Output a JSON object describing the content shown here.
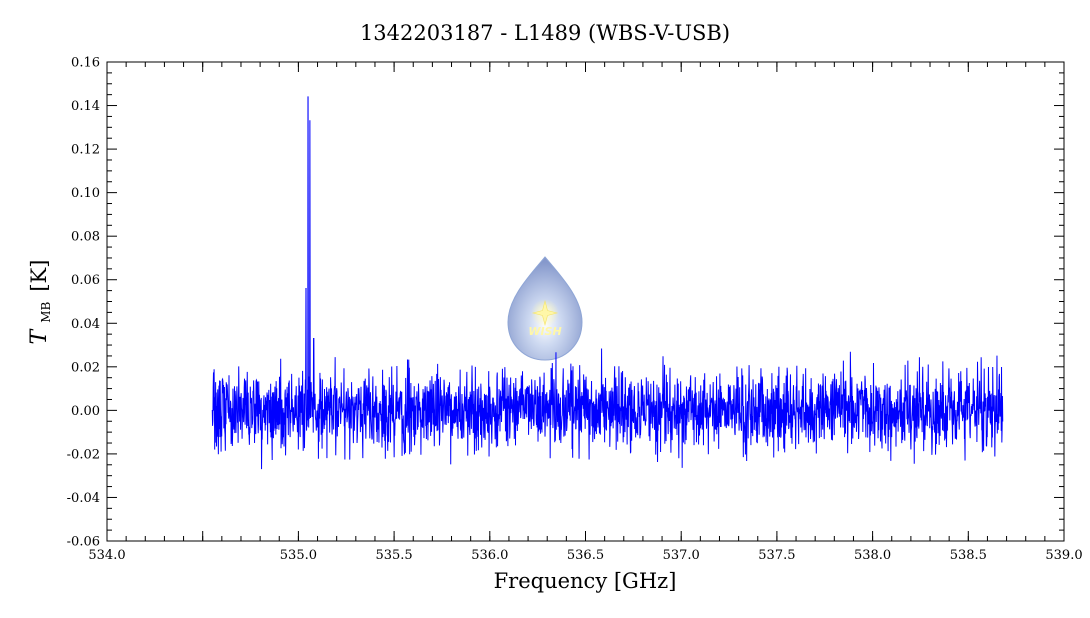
{
  "chart_data": {
    "type": "line",
    "title": "1342203187 - L1489 (WBS-V-USB)",
    "xlabel": "Frequency [GHz]",
    "ylabel": {
      "symbol": "T",
      "subscript": "MB",
      "unit": "[K]"
    },
    "xlim": [
      534.0,
      539.0
    ],
    "ylim": [
      -0.06,
      0.16
    ],
    "x_ticks": [
      "534.0",
      "535.0",
      "535.5",
      "536.0",
      "536.5",
      "537.0",
      "537.5",
      "538.0",
      "538.5",
      "539.0"
    ],
    "x_tick_values": [
      534.0,
      535.0,
      535.5,
      536.0,
      536.5,
      537.0,
      537.5,
      538.0,
      538.5,
      539.0
    ],
    "x_ticks_all": [
      "534.0",
      "534.5",
      "535.0",
      "535.5",
      "536.0",
      "536.5",
      "537.0",
      "537.5",
      "538.0",
      "538.5",
      "539.0"
    ],
    "y_ticks": [
      "0.16",
      "0.14",
      "0.12",
      "0.10",
      "0.08",
      "0.06",
      "0.04",
      "0.02",
      "0.00",
      "-0.02",
      "-0.04",
      "-0.06"
    ],
    "y_tick_values": [
      0.16,
      0.14,
      0.12,
      0.1,
      0.08,
      0.06,
      0.04,
      0.02,
      0.0,
      -0.02,
      -0.04,
      -0.06
    ],
    "series": [
      {
        "color": "#0000ff",
        "x_range": [
          534.55,
          538.68
        ],
        "noise_rms": 0.009,
        "peaks": [
          {
            "x": 535.05,
            "y": 0.144
          },
          {
            "x": 535.06,
            "y": 0.133
          },
          {
            "x": 535.04,
            "y": 0.056
          },
          {
            "x": 535.08,
            "y": 0.033
          }
        ]
      }
    ],
    "grid": false,
    "legend": "none"
  },
  "logo": {
    "text": "WISH",
    "colors": {
      "outer": "#8fa6d6",
      "inner": "#c9d6f0",
      "star": "#fff7a8"
    }
  }
}
